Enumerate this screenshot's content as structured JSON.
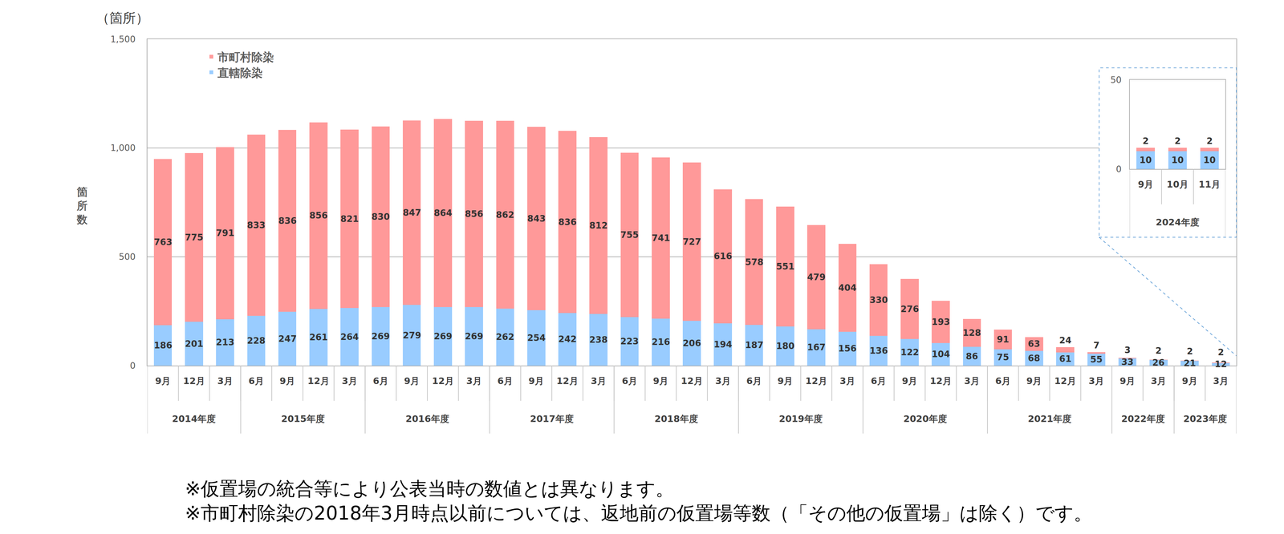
{
  "chart_data": [
    {
      "type": "bar",
      "stacked": true,
      "data_labels": true,
      "grid": true,
      "legend": "upper left",
      "unit_label": "（箇所）",
      "y_label": "箇所数",
      "categories": [
        "9月",
        "12月",
        "3月",
        "6月",
        "9月",
        "12月",
        "3月",
        "6月",
        "9月",
        "12月",
        "3月",
        "6月",
        "9月",
        "12月",
        "3月",
        "6月",
        "9月",
        "12月",
        "3月",
        "6月",
        "9月",
        "12月",
        "3月",
        "6月",
        "9月",
        "12月",
        "3月",
        "6月",
        "9月",
        "12月",
        "3月",
        "9月",
        "3月",
        "9月",
        "3月"
      ],
      "category_groups": [
        "2014年度",
        "2014年度",
        "2014年度",
        "2015年度",
        "2015年度",
        "2015年度",
        "2015年度",
        "2016年度",
        "2016年度",
        "2016年度",
        "2016年度",
        "2017年度",
        "2017年度",
        "2017年度",
        "2017年度",
        "2018年度",
        "2018年度",
        "2018年度",
        "2018年度",
        "2019年度",
        "2019年度",
        "2019年度",
        "2019年度",
        "2020年度",
        "2020年度",
        "2020年度",
        "2020年度",
        "2021年度",
        "2021年度",
        "2021年度",
        "2021年度",
        "2022年度",
        "2022年度",
        "2023年度",
        "2023年度"
      ],
      "series": [
        {
          "name": "直轄除染",
          "color": "#99CCFF",
          "values": [
            186,
            201,
            213,
            228,
            247,
            261,
            264,
            269,
            279,
            269,
            269,
            262,
            254,
            242,
            238,
            223,
            216,
            206,
            194,
            187,
            180,
            167,
            156,
            136,
            122,
            104,
            86,
            75,
            68,
            61,
            55,
            33,
            26,
            21,
            12
          ]
        },
        {
          "name": "市町村除染",
          "color": "#FF9999",
          "values": [
            763,
            775,
            791,
            833,
            836,
            856,
            821,
            830,
            847,
            864,
            856,
            862,
            843,
            836,
            812,
            755,
            741,
            727,
            616,
            578,
            551,
            479,
            404,
            330,
            276,
            193,
            128,
            91,
            63,
            24,
            7,
            3,
            2,
            2,
            2
          ]
        }
      ],
      "ylim": [
        0,
        1500
      ],
      "yticks": [
        0,
        500,
        {
          "value": 1000,
          "label": "1,000"
        },
        {
          "value": 1500,
          "label": "1,500"
        }
      ],
      "notes": [
        "※仮置場の統合等により公表当時の数値とは異なります。",
        "※市町村除染の2018年3月時点以前については、返地前の仮置場等数（「その他の仮置場」は除く）です。"
      ]
    },
    {
      "type": "bar",
      "stacked": true,
      "data_labels": true,
      "grid": false,
      "categories": [
        "9月",
        "10月",
        "11月"
      ],
      "category_groups": [
        "2024年度",
        "2024年度",
        "2024年度"
      ],
      "series": [
        {
          "name": "直轄除染",
          "color": "#99CCFF",
          "values": [
            10,
            10,
            10
          ]
        },
        {
          "name": "市町村除染",
          "color": "#FF9999",
          "values": [
            2,
            2,
            2
          ]
        }
      ],
      "ylim": [
        0,
        50
      ],
      "yticks": [
        0,
        50
      ]
    }
  ]
}
